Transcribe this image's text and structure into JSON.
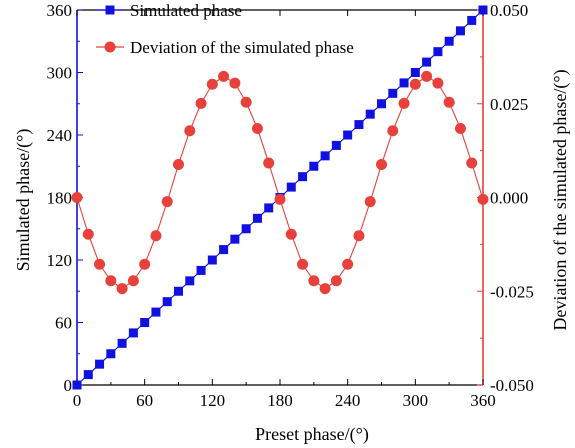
{
  "chart_data": {
    "type": "line",
    "xlabel": "Preset phase/(°)",
    "ylabel": "Simulated phase/(°)",
    "y2label": "Deviation of the simulated phase/(°)",
    "xlim": [
      0,
      360
    ],
    "ylim": [
      0,
      360
    ],
    "y2lim": [
      -0.05,
      0.05
    ],
    "xticks": [
      "0",
      "60",
      "120",
      "180",
      "240",
      "300",
      "360"
    ],
    "yticks": [
      "0",
      "60",
      "120",
      "180",
      "240",
      "300",
      "360"
    ],
    "y2ticks": [
      "-0.050",
      "-0.025",
      "0.000",
      "0.025",
      "0.050"
    ],
    "grid": false,
    "legend_position": "top-left",
    "series": [
      {
        "name": "Simulated phase",
        "axis": "left",
        "marker": "square",
        "color": "#1010e0",
        "x": [
          0,
          10,
          20,
          30,
          40,
          50,
          60,
          70,
          80,
          90,
          100,
          110,
          120,
          130,
          140,
          150,
          160,
          170,
          180,
          190,
          200,
          210,
          220,
          230,
          240,
          250,
          260,
          270,
          280,
          290,
          300,
          310,
          320,
          330,
          340,
          350,
          360
        ],
        "values": [
          0,
          10,
          20,
          30,
          40,
          50,
          60,
          70,
          80,
          90,
          100,
          110,
          120,
          130,
          140,
          150,
          160,
          170,
          180,
          190,
          200,
          210,
          220,
          230,
          240,
          250,
          260,
          270,
          280,
          290,
          300,
          310,
          320,
          330,
          340,
          350,
          360
        ]
      },
      {
        "name": "Deviation of the simulated phase",
        "axis": "right",
        "marker": "circle",
        "color": "#e8403a",
        "x": [
          0,
          10,
          20,
          30,
          40,
          50,
          60,
          70,
          80,
          90,
          100,
          110,
          120,
          130,
          140,
          150,
          160,
          170,
          180,
          190,
          200,
          210,
          220,
          230,
          240,
          250,
          260,
          270,
          280,
          290,
          300,
          310,
          320,
          330,
          340,
          350,
          360
        ],
        "values": [
          0,
          -0.0098,
          -0.0178,
          -0.0222,
          -0.0243,
          -0.0222,
          -0.0178,
          -0.0102,
          -0.0011,
          0.0088,
          0.0178,
          0.0251,
          0.0302,
          0.0323,
          0.0305,
          0.0254,
          0.0184,
          0.0092,
          -0.0005,
          -0.0098,
          -0.0178,
          -0.0222,
          -0.0243,
          -0.0222,
          -0.0178,
          -0.0102,
          -0.0011,
          0.0088,
          0.0178,
          0.0251,
          0.0302,
          0.0323,
          0.0305,
          0.0254,
          0.0184,
          0.0092,
          -0.0005
        ]
      }
    ]
  },
  "colors": {
    "left_axis": "#1010e0",
    "right_axis": "#e8403a",
    "frame": "#000000"
  }
}
